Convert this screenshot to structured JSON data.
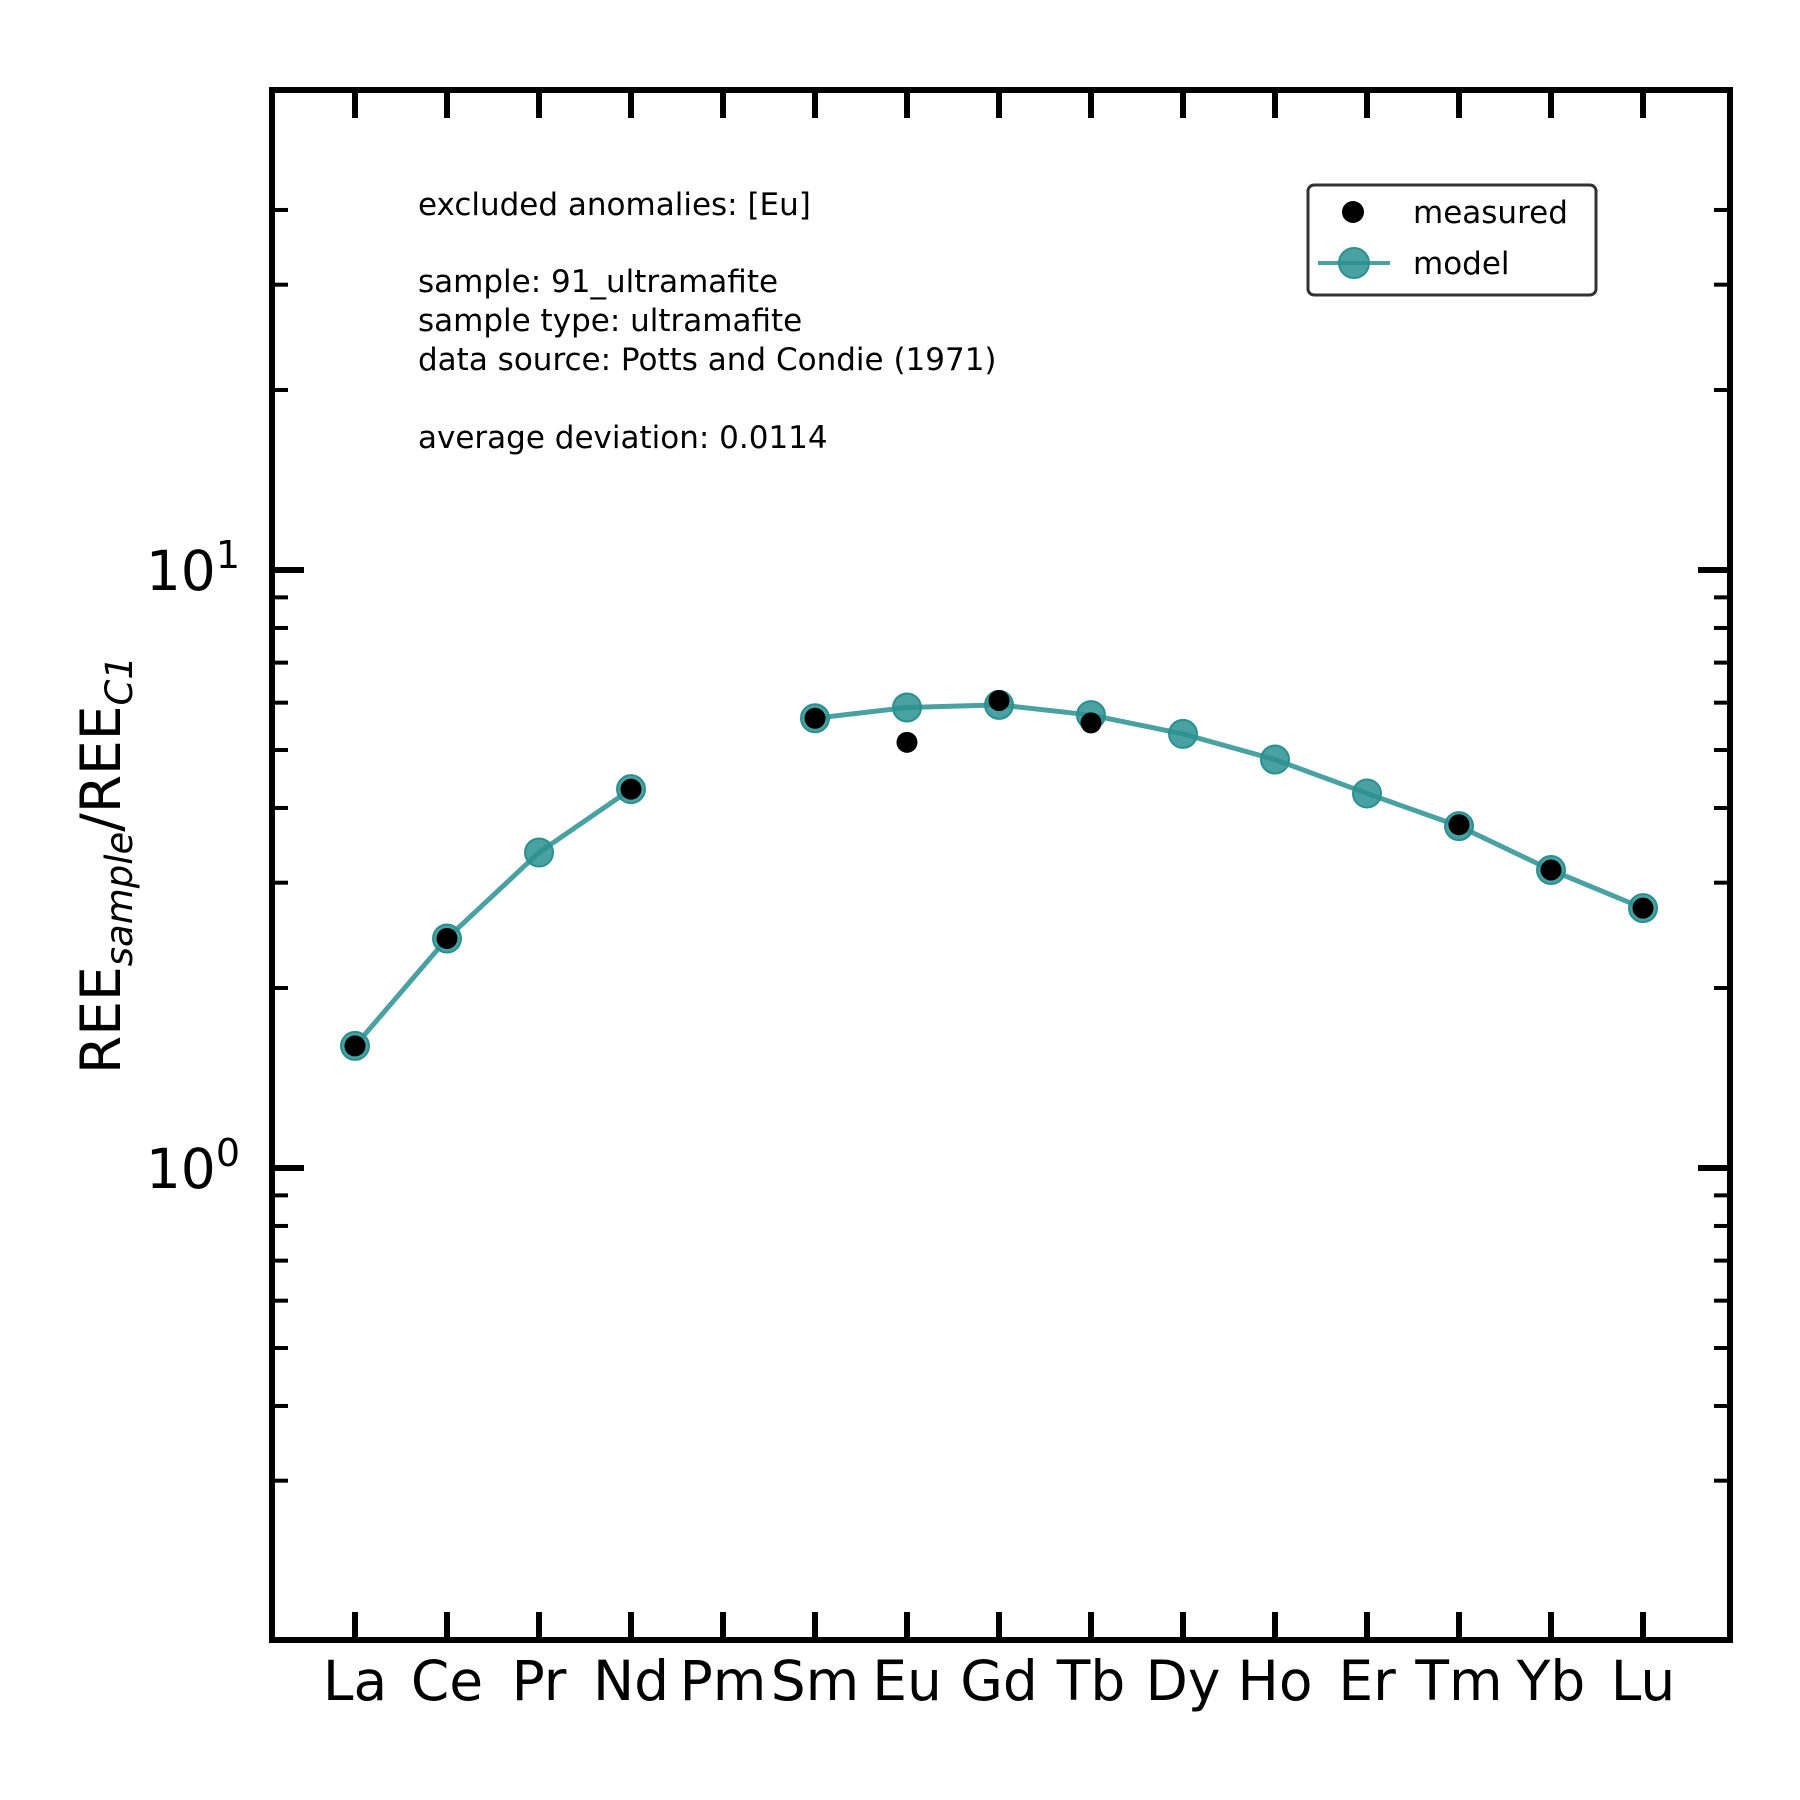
{
  "chart_data": {
    "type": "line",
    "categories": [
      "La",
      "Ce",
      "Pr",
      "Nd",
      "Pm",
      "Sm",
      "Eu",
      "Gd",
      "Tb",
      "Dy",
      "Ho",
      "Er",
      "Tm",
      "Yb",
      "Lu"
    ],
    "y_axis_label": {
      "main1": "REE",
      "sub1": "sample",
      "sep": "/",
      "main2": "REE",
      "sub2": "C1"
    },
    "y_scale": "log",
    "ylim": [
      0.28,
      45
    ],
    "y_tick_labels": [
      {
        "value": 1,
        "base": "10",
        "exp": "0"
      },
      {
        "value": 10,
        "base": "10",
        "exp": "1"
      }
    ],
    "grid": false,
    "legend_position": "top-right",
    "annotations": {
      "excluded": "excluded anomalies: [Eu]",
      "sample": "sample: 91_ultramafite",
      "sample_type": "sample type: ultramafite",
      "data_source": "data source: Potts and Condie (1971)",
      "deviation": "average deviation: 0.0114"
    },
    "series": [
      {
        "name": "measured",
        "style": "markers",
        "color": "#000000",
        "values": [
          1.6,
          2.42,
          null,
          4.3,
          null,
          5.65,
          5.15,
          6.05,
          5.55,
          null,
          null,
          null,
          3.75,
          3.15,
          2.72
        ]
      },
      {
        "name": "model",
        "style": "line+markers",
        "color": "#2a9090",
        "values": [
          1.6,
          2.42,
          3.37,
          4.3,
          null,
          5.65,
          5.89,
          5.95,
          5.72,
          5.32,
          4.82,
          4.23,
          3.73,
          3.15,
          2.72
        ]
      }
    ]
  }
}
